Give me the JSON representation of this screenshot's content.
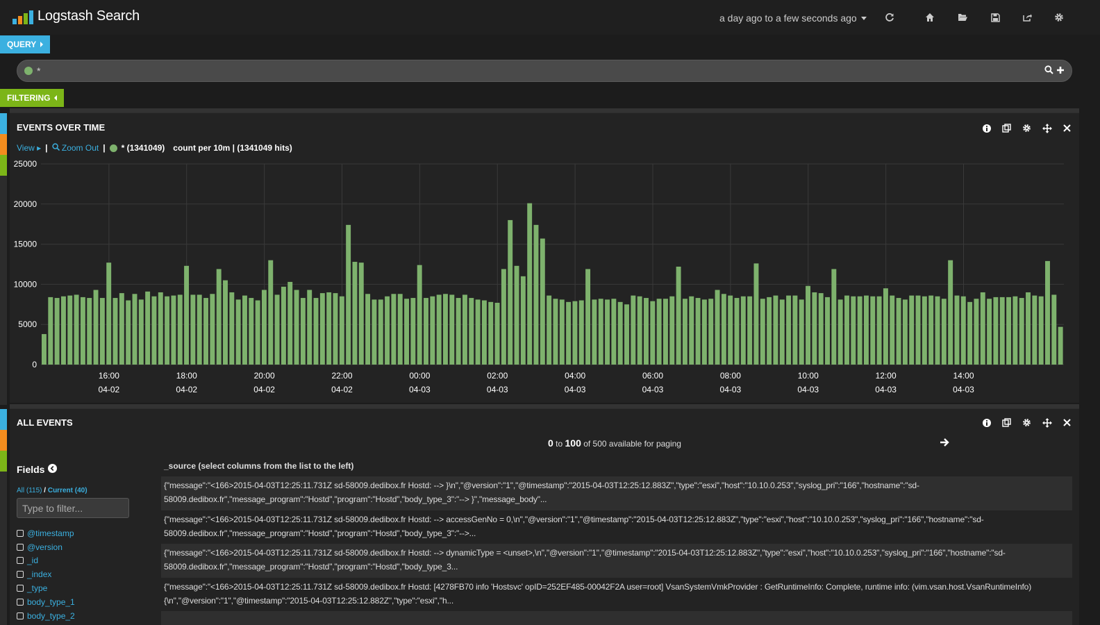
{
  "app": {
    "title": "Logstash Search",
    "timespan": "a day ago to a few seconds ago"
  },
  "query": {
    "pill_label": "QUERY",
    "value": "*",
    "dot_color": "#7eb26d"
  },
  "filtering": {
    "pill_label": "FILTERING"
  },
  "colors": {
    "query_accent": "#3bb0e0",
    "filter_accent": "#7cb518",
    "row_orange": "#f28c1e",
    "bar_green": "#7eb26d"
  },
  "histogram_panel": {
    "title": "EVENTS OVER TIME",
    "view_label": "View",
    "zoom_out_label": "Zoom Out",
    "legend_label": "* (1341049)",
    "count_prefix": "count per ",
    "interval": "10m",
    "hits_label": " | (1341049 hits)"
  },
  "events_panel": {
    "title": "ALL EVENTS",
    "paging_from": "0",
    "paging_to_word": "to",
    "paging_to": "100",
    "paging_suffix": "of 500 available for paging",
    "fields_title": "Fields",
    "fields_all": "All (115)",
    "fields_sep": "/",
    "fields_current": "Current (40)",
    "filter_placeholder": "Type to filter...",
    "fields": [
      "@timestamp",
      "@version",
      "_id",
      "_index",
      "_type",
      "body_type_1",
      "body_type_2"
    ],
    "source_header": "_source (select columns from the list to the left)",
    "rows": [
      "{\"message\":\"<166>2015-04-03T12:25:11.731Z sd-58009.dedibox.fr Hostd: --> }\\n\",\"@version\":\"1\",\"@timestamp\":\"2015-04-03T12:25:12.883Z\",\"type\":\"esxi\",\"host\":\"10.10.0.253\",\"syslog_pri\":\"166\",\"hostname\":\"sd-58009.dedibox.fr\",\"message_program\":\"Hostd\",\"program\":\"Hostd\",\"body_type_3\":\"--> }\",\"message_body\"...",
      "{\"message\":\"<166>2015-04-03T12:25:11.731Z sd-58009.dedibox.fr Hostd: --> accessGenNo = 0,\\n\",\"@version\":\"1\",\"@timestamp\":\"2015-04-03T12:25:12.883Z\",\"type\":\"esxi\",\"host\":\"10.10.0.253\",\"syslog_pri\":\"166\",\"hostname\":\"sd-58009.dedibox.fr\",\"message_program\":\"Hostd\",\"program\":\"Hostd\",\"body_type_3\":\"-->...",
      "{\"message\":\"<166>2015-04-03T12:25:11.731Z sd-58009.dedibox.fr Hostd: --> dynamicType = <unset>,\\n\",\"@version\":\"1\",\"@timestamp\":\"2015-04-03T12:25:12.883Z\",\"type\":\"esxi\",\"host\":\"10.10.0.253\",\"syslog_pri\":\"166\",\"hostname\":\"sd-58009.dedibox.fr\",\"message_program\":\"Hostd\",\"program\":\"Hostd\",\"body_type_3...",
      "{\"message\":\"<166>2015-04-03T12:25:11.731Z sd-58009.dedibox.fr Hostd: [4278FB70 info 'Hostsvc' opID=252EF485-00042F2A user=root] VsanSystemVmkProvider : GetRuntimeInfo: Complete, runtime info: (vim.vsan.host.VsanRuntimeInfo) {\\n\",\"@version\":\"1\",\"@timestamp\":\"2015-04-03T12:25:12.882Z\",\"type\":\"esxi\",\"h..."
    ]
  },
  "chart_data": {
    "type": "bar",
    "ylim": [
      0,
      25000
    ],
    "y_ticks": [
      0,
      5000,
      10000,
      15000,
      20000,
      25000
    ],
    "x_ticks": [
      {
        "time": "16:00",
        "date": "04-02"
      },
      {
        "time": "18:00",
        "date": "04-02"
      },
      {
        "time": "20:00",
        "date": "04-02"
      },
      {
        "time": "22:00",
        "date": "04-02"
      },
      {
        "time": "00:00",
        "date": "04-03"
      },
      {
        "time": "02:00",
        "date": "04-03"
      },
      {
        "time": "04:00",
        "date": "04-03"
      },
      {
        "time": "06:00",
        "date": "04-03"
      },
      {
        "time": "08:00",
        "date": "04-03"
      },
      {
        "time": "10:00",
        "date": "04-03"
      },
      {
        "time": "12:00",
        "date": "04-03"
      },
      {
        "time": "14:00",
        "date": "04-03"
      }
    ],
    "interval": "10m",
    "series": [
      {
        "name": "*",
        "values": [
          3800,
          8400,
          8300,
          8500,
          8600,
          8700,
          8400,
          8300,
          9300,
          8300,
          12700,
          8300,
          8900,
          8000,
          8800,
          8100,
          9100,
          8500,
          9000,
          8500,
          8600,
          8700,
          12300,
          8700,
          8700,
          8300,
          8800,
          11900,
          10500,
          9000,
          8100,
          8600,
          8300,
          8000,
          9300,
          13000,
          8700,
          9700,
          10300,
          9300,
          8300,
          9300,
          8300,
          8900,
          9000,
          8900,
          8500,
          17400,
          12800,
          12700,
          8800,
          8100,
          8100,
          8500,
          8800,
          8800,
          8200,
          8300,
          12400,
          8300,
          8500,
          8700,
          8800,
          8700,
          8300,
          8700,
          8300,
          8100,
          8000,
          7800,
          7700,
          11900,
          18000,
          12300,
          11000,
          20100,
          17400,
          15700,
          8600,
          8200,
          8100,
          7800,
          7900,
          8000,
          11900,
          8100,
          8200,
          8100,
          8200,
          7800,
          7500,
          8600,
          8500,
          8300,
          7900,
          8200,
          8200,
          8500,
          12200,
          8200,
          8500,
          8300,
          8100,
          8200,
          9300,
          8800,
          8600,
          8300,
          8500,
          8500,
          12600,
          8200,
          8400,
          8600,
          8100,
          8600,
          8600,
          8100,
          9800,
          9000,
          8900,
          8400,
          11900,
          8100,
          8600,
          8500,
          8500,
          8600,
          8500,
          8500,
          9500,
          8600,
          8300,
          8100,
          8600,
          8600,
          8500,
          8600,
          8500,
          8200,
          13000,
          8600,
          8500,
          7800,
          8200,
          9000,
          8200,
          8400,
          8400,
          8400,
          8500,
          8300,
          9000,
          8600,
          8500,
          12900,
          8700,
          4700
        ]
      }
    ]
  }
}
